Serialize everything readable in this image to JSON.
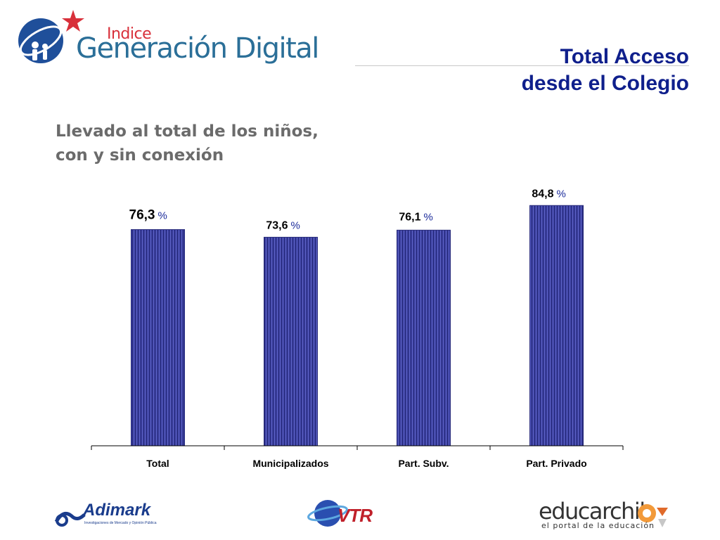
{
  "header": {
    "logo_small": "Indice",
    "logo_main": "Generación Digital",
    "title_line1": "Total Acceso",
    "title_line2": "desde el Colegio"
  },
  "subtitle": {
    "line1": "Llevado al total de los niños,",
    "line2": "con y sin conexión"
  },
  "chart_data": {
    "type": "bar",
    "categories": [
      "Total",
      "Municipalizados",
      "Part. Subv.",
      "Part. Privado"
    ],
    "values": [
      76.3,
      73.6,
      76.1,
      84.8
    ],
    "value_labels": [
      "76,3",
      "73,6",
      "76,1",
      "84,8"
    ],
    "unit": "%",
    "ylim": [
      0,
      100
    ],
    "grid": false,
    "title": "",
    "xlabel": "",
    "ylabel": "",
    "bar_color": "#3a3f9e",
    "unit_color": "#1a2a9a"
  },
  "footer": {
    "adimark_name": "Adimark",
    "adimark_tagline": "Investigaciones de Mercado y Opinión Pública",
    "vtr_name": "VTR",
    "educarchile_name_a": "educar",
    "educarchile_name_b": "chil",
    "educarchile_tagline": "el portal de la educación"
  },
  "colors": {
    "title": "#0f1f8c",
    "subtitle": "#6b6b6b",
    "logo_blue": "#2b6f98",
    "logo_red": "#d8303a"
  }
}
